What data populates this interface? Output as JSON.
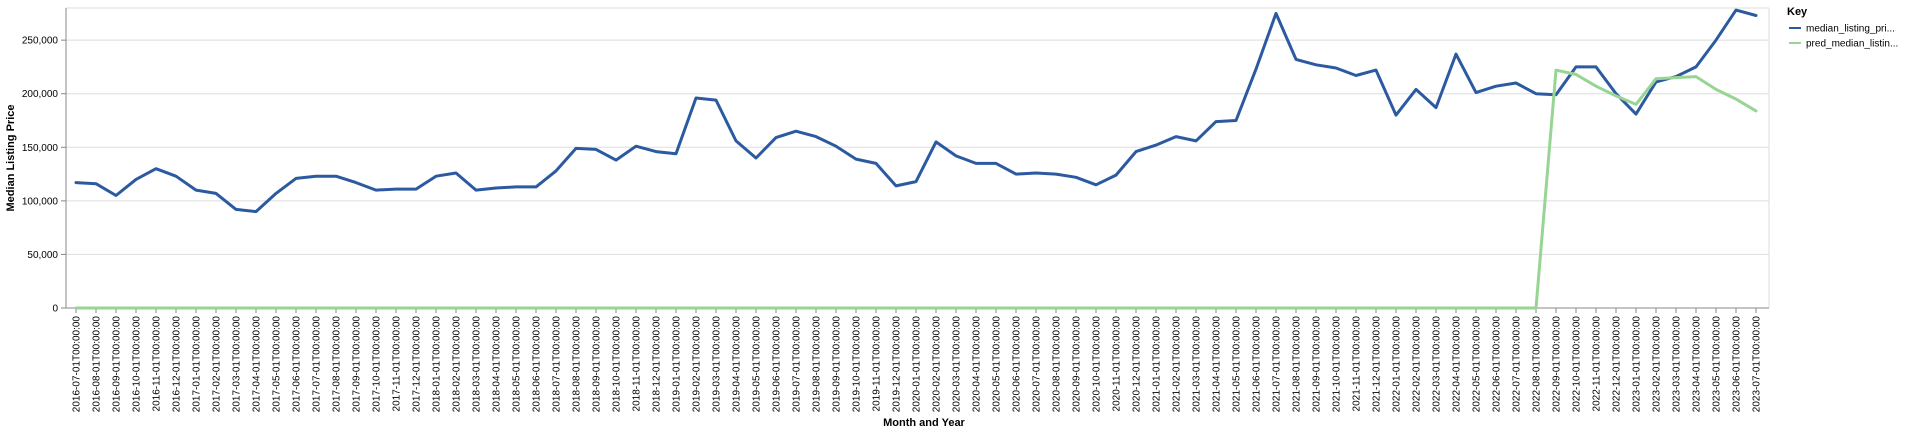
{
  "chart_data": {
    "type": "line",
    "xlabel": "Month and Year",
    "ylabel": "Median Listing Price",
    "ylim": [
      0,
      280000
    ],
    "yticks": [
      0,
      50000,
      100000,
      150000,
      200000,
      250000
    ],
    "ytick_labels": [
      "0",
      "50,000",
      "100,000",
      "150,000",
      "200,000",
      "250,000"
    ],
    "grid": true,
    "legend": {
      "title": "Key",
      "placement": "right"
    },
    "x": [
      "2016-07-01T00:00:00",
      "2016-08-01T00:00:00",
      "2016-09-01T00:00:00",
      "2016-10-01T00:00:00",
      "2016-11-01T00:00:00",
      "2016-12-01T00:00:00",
      "2017-01-01T00:00:00",
      "2017-02-01T00:00:00",
      "2017-03-01T00:00:00",
      "2017-04-01T00:00:00",
      "2017-05-01T00:00:00",
      "2017-06-01T00:00:00",
      "2017-07-01T00:00:00",
      "2017-08-01T00:00:00",
      "2017-09-01T00:00:00",
      "2017-10-01T00:00:00",
      "2017-11-01T00:00:00",
      "2017-12-01T00:00:00",
      "2018-01-01T00:00:00",
      "2018-02-01T00:00:00",
      "2018-03-01T00:00:00",
      "2018-04-01T00:00:00",
      "2018-05-01T00:00:00",
      "2018-06-01T00:00:00",
      "2018-07-01T00:00:00",
      "2018-08-01T00:00:00",
      "2018-09-01T00:00:00",
      "2018-10-01T00:00:00",
      "2018-11-01T00:00:00",
      "2018-12-01T00:00:00",
      "2019-01-01T00:00:00",
      "2019-02-01T00:00:00",
      "2019-03-01T00:00:00",
      "2019-04-01T00:00:00",
      "2019-05-01T00:00:00",
      "2019-06-01T00:00:00",
      "2019-07-01T00:00:00",
      "2019-08-01T00:00:00",
      "2019-09-01T00:00:00",
      "2019-10-01T00:00:00",
      "2019-11-01T00:00:00",
      "2019-12-01T00:00:00",
      "2020-01-01T00:00:00",
      "2020-02-01T00:00:00",
      "2020-03-01T00:00:00",
      "2020-04-01T00:00:00",
      "2020-05-01T00:00:00",
      "2020-06-01T00:00:00",
      "2020-07-01T00:00:00",
      "2020-08-01T00:00:00",
      "2020-09-01T00:00:00",
      "2020-10-01T00:00:00",
      "2020-11-01T00:00:00",
      "2020-12-01T00:00:00",
      "2021-01-01T00:00:00",
      "2021-02-01T00:00:00",
      "2021-03-01T00:00:00",
      "2021-04-01T00:00:00",
      "2021-05-01T00:00:00",
      "2021-06-01T00:00:00",
      "2021-07-01T00:00:00",
      "2021-08-01T00:00:00",
      "2021-09-01T00:00:00",
      "2021-10-01T00:00:00",
      "2021-11-01T00:00:00",
      "2021-12-01T00:00:00",
      "2022-01-01T00:00:00",
      "2022-02-01T00:00:00",
      "2022-03-01T00:00:00",
      "2022-04-01T00:00:00",
      "2022-05-01T00:00:00",
      "2022-06-01T00:00:00",
      "2022-07-01T00:00:00",
      "2022-08-01T00:00:00",
      "2022-09-01T00:00:00",
      "2022-10-01T00:00:00",
      "2022-11-01T00:00:00",
      "2022-12-01T00:00:00",
      "2023-01-01T00:00:00",
      "2023-02-01T00:00:00",
      "2023-03-01T00:00:00",
      "2023-04-01T00:00:00",
      "2023-05-01T00:00:00",
      "2023-06-01T00:00:00",
      "2023-07-01T00:00:00"
    ],
    "series": [
      {
        "name": "median_listing_pri...",
        "color": "#2c5aa0",
        "values": [
          117000,
          116000,
          105000,
          120000,
          130000,
          123000,
          110000,
          107000,
          92000,
          90000,
          107000,
          121000,
          123000,
          123000,
          117000,
          110000,
          111000,
          111000,
          123000,
          126000,
          110000,
          112000,
          113000,
          113000,
          128000,
          149000,
          148000,
          138000,
          151000,
          146000,
          144000,
          196000,
          194000,
          156000,
          140000,
          159000,
          165000,
          160000,
          151000,
          139000,
          135000,
          114000,
          118000,
          155000,
          142000,
          135000,
          135000,
          125000,
          126000,
          125000,
          122000,
          115000,
          124000,
          146000,
          152000,
          160000,
          156000,
          174000,
          175000,
          223000,
          275000,
          232000,
          227000,
          224000,
          217000,
          222000,
          180000,
          204000,
          187000,
          237000,
          201000,
          207000,
          210000,
          200000,
          199000,
          225000,
          225000,
          200000,
          181000,
          211000,
          216000,
          225000,
          250000,
          278000,
          273000
        ]
      },
      {
        "name": "pred_median_listin...",
        "color": "#98d594",
        "values": [
          0,
          0,
          0,
          0,
          0,
          0,
          0,
          0,
          0,
          0,
          0,
          0,
          0,
          0,
          0,
          0,
          0,
          0,
          0,
          0,
          0,
          0,
          0,
          0,
          0,
          0,
          0,
          0,
          0,
          0,
          0,
          0,
          0,
          0,
          0,
          0,
          0,
          0,
          0,
          0,
          0,
          0,
          0,
          0,
          0,
          0,
          0,
          0,
          0,
          0,
          0,
          0,
          0,
          0,
          0,
          0,
          0,
          0,
          0,
          0,
          0,
          0,
          0,
          0,
          0,
          0,
          0,
          0,
          0,
          0,
          0,
          0,
          0,
          0,
          222000,
          218000,
          207000,
          198000,
          190000,
          214000,
          215000,
          216000,
          204000,
          195000,
          184000
        ]
      }
    ]
  }
}
